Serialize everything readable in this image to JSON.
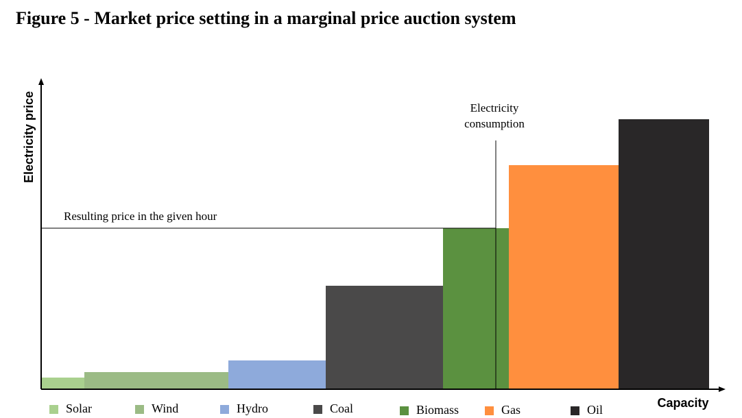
{
  "figure": {
    "title": "Figure 5 - Market price setting in a marginal price auction system"
  },
  "chart_data": {
    "type": "bar",
    "xlabel": "Capacity",
    "ylabel": "Electricity price",
    "grid": false,
    "legend_position": "bottom",
    "series": [
      {
        "name": "Solar",
        "capacity": 63,
        "price": 17,
        "color": "#a9d08e"
      },
      {
        "name": "Wind",
        "capacity": 210,
        "price": 25,
        "color": "#9bbb85"
      },
      {
        "name": "Hydro",
        "capacity": 142,
        "price": 42,
        "color": "#8eaadb"
      },
      {
        "name": "Coal",
        "capacity": 171,
        "price": 151,
        "color": "#4a4949"
      },
      {
        "name": "Biomass",
        "capacity": 96,
        "price": 235,
        "color": "#5b9140"
      },
      {
        "name": "Gas",
        "capacity": 160,
        "price": 327,
        "color": "#ff8f3e"
      },
      {
        "name": "Oil",
        "capacity": 132,
        "price": 394,
        "color": "#292728"
      }
    ],
    "annotations": {
      "consumption_label": [
        "Electricity",
        "consumption"
      ],
      "consumption_capacity": 663,
      "price_line_label": "Resulting price in the given hour",
      "resulting_price": 235
    }
  }
}
